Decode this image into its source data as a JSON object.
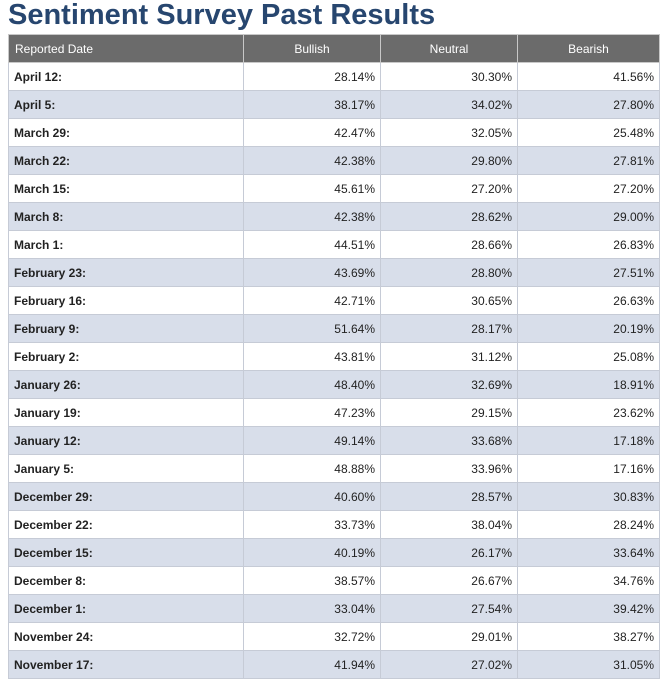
{
  "page": {
    "title": "Sentiment Survey Past Results"
  },
  "table": {
    "headers": [
      "Reported Date",
      "Bullish",
      "Neutral",
      "Bearish"
    ],
    "rows": [
      [
        "April 12:",
        "28.14%",
        "30.30%",
        "41.56%"
      ],
      [
        "April 5:",
        "38.17%",
        "34.02%",
        "27.80%"
      ],
      [
        "March 29:",
        "42.47%",
        "32.05%",
        "25.48%"
      ],
      [
        "March 22:",
        "42.38%",
        "29.80%",
        "27.81%"
      ],
      [
        "March 15:",
        "45.61%",
        "27.20%",
        "27.20%"
      ],
      [
        "March 8:",
        "42.38%",
        "28.62%",
        "29.00%"
      ],
      [
        "March 1:",
        "44.51%",
        "28.66%",
        "26.83%"
      ],
      [
        "February 23:",
        "43.69%",
        "28.80%",
        "27.51%"
      ],
      [
        "February 16:",
        "42.71%",
        "30.65%",
        "26.63%"
      ],
      [
        "February 9:",
        "51.64%",
        "28.17%",
        "20.19%"
      ],
      [
        "February 2:",
        "43.81%",
        "31.12%",
        "25.08%"
      ],
      [
        "January 26:",
        "48.40%",
        "32.69%",
        "18.91%"
      ],
      [
        "January 19:",
        "47.23%",
        "29.15%",
        "23.62%"
      ],
      [
        "January 12:",
        "49.14%",
        "33.68%",
        "17.18%"
      ],
      [
        "January 5:",
        "48.88%",
        "33.96%",
        "17.16%"
      ],
      [
        "December 29:",
        "40.60%",
        "28.57%",
        "30.83%"
      ],
      [
        "December 22:",
        "33.73%",
        "38.04%",
        "28.24%"
      ],
      [
        "December 15:",
        "40.19%",
        "26.17%",
        "33.64%"
      ],
      [
        "December 8:",
        "38.57%",
        "26.67%",
        "34.76%"
      ],
      [
        "December 1:",
        "33.04%",
        "27.54%",
        "39.42%"
      ],
      [
        "November 24:",
        "32.72%",
        "29.01%",
        "38.27%"
      ],
      [
        "November 17:",
        "41.94%",
        "27.02%",
        "31.05%"
      ]
    ]
  },
  "colors": {
    "title": "#27466f",
    "header_bg": "#6b6b6b",
    "row_alt_bg": "#d8deea"
  }
}
